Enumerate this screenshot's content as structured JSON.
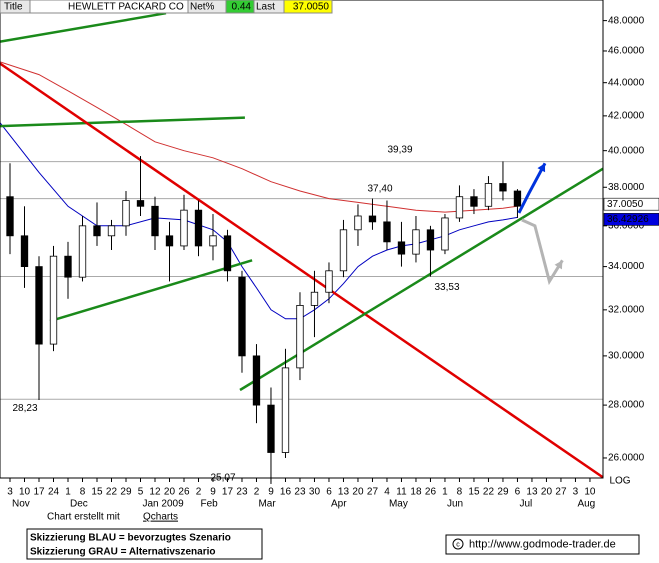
{
  "chart_data": {
    "type": "candlestick",
    "header": {
      "title_label": "Title",
      "title": "HEWLETT PACKARD CO",
      "net_label": "Net%",
      "net": 0.44,
      "last_label": "Last",
      "last": {
        "value": 37.005,
        "label": "37.0050"
      }
    },
    "log_scale": true,
    "log_label": "LOG",
    "ylim": [
      25.28,
      49.2
    ],
    "yticks": [
      {
        "value": 26,
        "label": "26.0000"
      },
      {
        "value": 28,
        "label": "28.0000"
      },
      {
        "value": 30,
        "label": "30.0000"
      },
      {
        "value": 32,
        "label": "32.0000"
      },
      {
        "value": 34,
        "label": "34.0000"
      },
      {
        "value": 36,
        "label": "36.0000"
      },
      {
        "value": 38,
        "label": "38.0000"
      },
      {
        "value": 40,
        "label": "40.0000"
      },
      {
        "value": 42,
        "label": "42.0000"
      },
      {
        "value": 44,
        "label": "44.0000"
      },
      {
        "value": 46,
        "label": "46.0000"
      },
      {
        "value": 48,
        "label": "48.0000"
      }
    ],
    "xlim": [
      -0.69,
      40.9
    ],
    "xticks": [
      {
        "value": 0,
        "label": "3"
      },
      {
        "value": 1,
        "label": "10"
      },
      {
        "value": 2,
        "label": "17"
      },
      {
        "value": 3,
        "label": "24"
      },
      {
        "value": 4,
        "label": "1"
      },
      {
        "value": 5,
        "label": "8"
      },
      {
        "value": 6,
        "label": "15"
      },
      {
        "value": 7,
        "label": "22"
      },
      {
        "value": 8,
        "label": "29"
      },
      {
        "value": 9,
        "label": "5"
      },
      {
        "value": 10,
        "label": "12"
      },
      {
        "value": 11,
        "label": "20"
      },
      {
        "value": 12,
        "label": "26"
      },
      {
        "value": 13,
        "label": "2"
      },
      {
        "value": 14,
        "label": "9"
      },
      {
        "value": 15,
        "label": "17"
      },
      {
        "value": 16,
        "label": "23"
      },
      {
        "value": 17,
        "label": "2"
      },
      {
        "value": 18,
        "label": "9"
      },
      {
        "value": 19,
        "label": "16"
      },
      {
        "value": 20,
        "label": "23"
      },
      {
        "value": 21,
        "label": "30"
      },
      {
        "value": 22,
        "label": "6"
      },
      {
        "value": 23,
        "label": "13"
      },
      {
        "value": 24,
        "label": "20"
      },
      {
        "value": 25,
        "label": "27"
      },
      {
        "value": 26,
        "label": "4"
      },
      {
        "value": 27,
        "label": "11"
      },
      {
        "value": 28,
        "label": "18"
      },
      {
        "value": 29,
        "label": "26"
      },
      {
        "value": 30,
        "label": "1"
      },
      {
        "value": 31,
        "label": "8"
      },
      {
        "value": 32,
        "label": "15"
      },
      {
        "value": 33,
        "label": "22"
      },
      {
        "value": 34,
        "label": "29"
      },
      {
        "value": 35,
        "label": "6"
      },
      {
        "value": 36,
        "label": "13"
      },
      {
        "value": 37,
        "label": "20"
      },
      {
        "value": 38,
        "label": "27"
      },
      {
        "value": 39,
        "label": "3"
      },
      {
        "value": 40,
        "label": "10"
      }
    ],
    "month_ticks": [
      {
        "value": 0,
        "label": "Nov"
      },
      {
        "value": 4,
        "label": "Dec"
      },
      {
        "value": 9,
        "label": "Jan 2009"
      },
      {
        "value": 13,
        "label": "Feb"
      },
      {
        "value": 17,
        "label": "Mar"
      },
      {
        "value": 22,
        "label": "Apr"
      },
      {
        "value": 26,
        "label": "May"
      },
      {
        "value": 30,
        "label": "Jun"
      },
      {
        "value": 35,
        "label": "Jul"
      },
      {
        "value": 39,
        "label": "Aug"
      }
    ],
    "x": [
      0,
      1,
      2,
      3,
      4,
      5,
      6,
      7,
      8,
      9,
      10,
      11,
      12,
      13,
      14,
      15,
      16,
      17,
      18,
      19,
      20,
      21,
      22,
      23,
      24,
      25,
      26,
      27,
      28,
      29,
      30,
      31,
      32,
      33,
      34,
      35
    ],
    "open": [
      37.5,
      35.5,
      34.0,
      30.5,
      34.5,
      33.5,
      36.0,
      35.5,
      36.0,
      37.3,
      37.0,
      35.5,
      35.0,
      36.8,
      35.0,
      35.5,
      33.5,
      30.0,
      28.0,
      26.2,
      29.5,
      32.2,
      32.8,
      33.8,
      35.8,
      36.5,
      36.2,
      35.2,
      34.6,
      35.8,
      34.8,
      36.4,
      37.5,
      37.0,
      38.2,
      37.8
    ],
    "high": [
      39.3,
      37.0,
      34.5,
      35.0,
      35.2,
      36.5,
      37.2,
      36.3,
      37.8,
      39.7,
      37.5,
      36.2,
      37.6,
      37.3,
      36.6,
      35.8,
      33.8,
      30.5,
      28.7,
      30.3,
      32.8,
      33.8,
      34.2,
      36.3,
      37.1,
      37.4,
      37.3,
      36.2,
      36.5,
      36.0,
      36.6,
      38.1,
      37.9,
      38.6,
      39.4,
      37.9
    ],
    "low": [
      34.6,
      33.0,
      28.2,
      30.2,
      32.5,
      33.3,
      35.0,
      34.8,
      35.5,
      36.5,
      34.8,
      33.3,
      34.8,
      34.5,
      34.3,
      33.3,
      29.3,
      27.3,
      25.07,
      26.0,
      29.0,
      30.8,
      32.3,
      33.5,
      35.0,
      35.8,
      34.8,
      34.0,
      34.2,
      33.53,
      34.6,
      36.2,
      36.6,
      36.8,
      37.3,
      36.4
    ],
    "close": [
      35.5,
      34.0,
      30.5,
      34.5,
      33.5,
      36.0,
      35.5,
      36.0,
      37.3,
      37.0,
      35.5,
      35.0,
      36.8,
      35.0,
      35.5,
      33.8,
      30.0,
      28.0,
      26.2,
      29.5,
      32.2,
      32.8,
      33.8,
      35.8,
      36.5,
      36.2,
      35.2,
      34.6,
      35.8,
      34.8,
      36.4,
      37.5,
      37.0,
      38.2,
      37.8,
      37.005
    ],
    "series": [
      {
        "color": "#0000c0",
        "x": [
          -0.69,
          2,
          4,
          6,
          8,
          10,
          12,
          14,
          15,
          16,
          17,
          18,
          19,
          20,
          21,
          22,
          23,
          24,
          25,
          26,
          27,
          28,
          29,
          30,
          31,
          32,
          33,
          34,
          35
        ],
        "values": [
          41.6,
          38.8,
          37.0,
          36.0,
          36.0,
          36.4,
          36.3,
          35.8,
          35.2,
          34.0,
          33.0,
          32.0,
          31.6,
          31.6,
          32.0,
          32.5,
          33.2,
          34.0,
          34.5,
          34.8,
          35.0,
          35.1,
          35.3,
          35.5,
          35.8,
          36.0,
          36.2,
          36.3,
          36.42926
        ]
      },
      {
        "color": "#d03030",
        "x": [
          -0.69,
          2,
          4,
          6,
          8,
          10,
          12,
          14,
          16,
          18,
          20,
          22,
          24,
          26,
          28,
          30,
          32,
          34,
          35
        ],
        "values": [
          45.3,
          44.5,
          43.5,
          42.5,
          41.5,
          40.5,
          40.0,
          39.6,
          39.0,
          38.3,
          37.8,
          37.4,
          37.2,
          37.0,
          36.8,
          36.7,
          36.8,
          36.9,
          37.0
        ]
      }
    ],
    "trendlines": [
      {
        "color": "#1a8a1a",
        "x": [
          -0.69,
          10.76
        ],
        "values": [
          46.6,
          48.5
        ]
      },
      {
        "color": "#1a8a1a",
        "x": [
          -0.69,
          16.2
        ],
        "values": [
          41.4,
          41.9
        ]
      },
      {
        "color": "#e00000",
        "x": [
          -0.69,
          40.9
        ],
        "values": [
          45.2,
          25.3
        ]
      },
      {
        "color": "#1a8a1a",
        "x": [
          2.76,
          16.7
        ],
        "values": [
          31.5,
          34.3
        ]
      },
      {
        "color": "#1a8a1a",
        "x": [
          15.86,
          40.9
        ],
        "values": [
          28.6,
          39.0
        ]
      }
    ],
    "scenarios": [
      {
        "color": "#0033dd",
        "x": [
          35.1,
          35.8,
          36.9
        ],
        "values": [
          36.66,
          37.7,
          39.3
        ]
      },
      {
        "color": "#b4b4b4",
        "x": [
          35.3,
          36.2,
          37.2,
          38.1
        ],
        "values": [
          36.3,
          36.0,
          33.3,
          34.3
        ]
      }
    ],
    "levels": [
      {
        "value": 39.39,
        "label": "39,39"
      },
      {
        "value": 37.4,
        "label": "37,40"
      },
      {
        "value": 33.53,
        "label": "33,53"
      },
      {
        "value": 28.23,
        "label": "28,23"
      }
    ],
    "low_annotation": {
      "value": 25.07,
      "label": "25,07"
    },
    "last_labels": [
      {
        "value": 37.005,
        "label": "37.0050"
      },
      {
        "value": 36.42926,
        "label": "36.42926"
      }
    ],
    "footer": {
      "credit": "Chart erstellt mit",
      "credit_link": "Qcharts",
      "legend": [
        "Skizzierung BLAU = bevorzugtes Szenario",
        "Skizzierung GRAU = Alternativszenario"
      ],
      "url": "http://www.godmode-trader.de"
    }
  }
}
